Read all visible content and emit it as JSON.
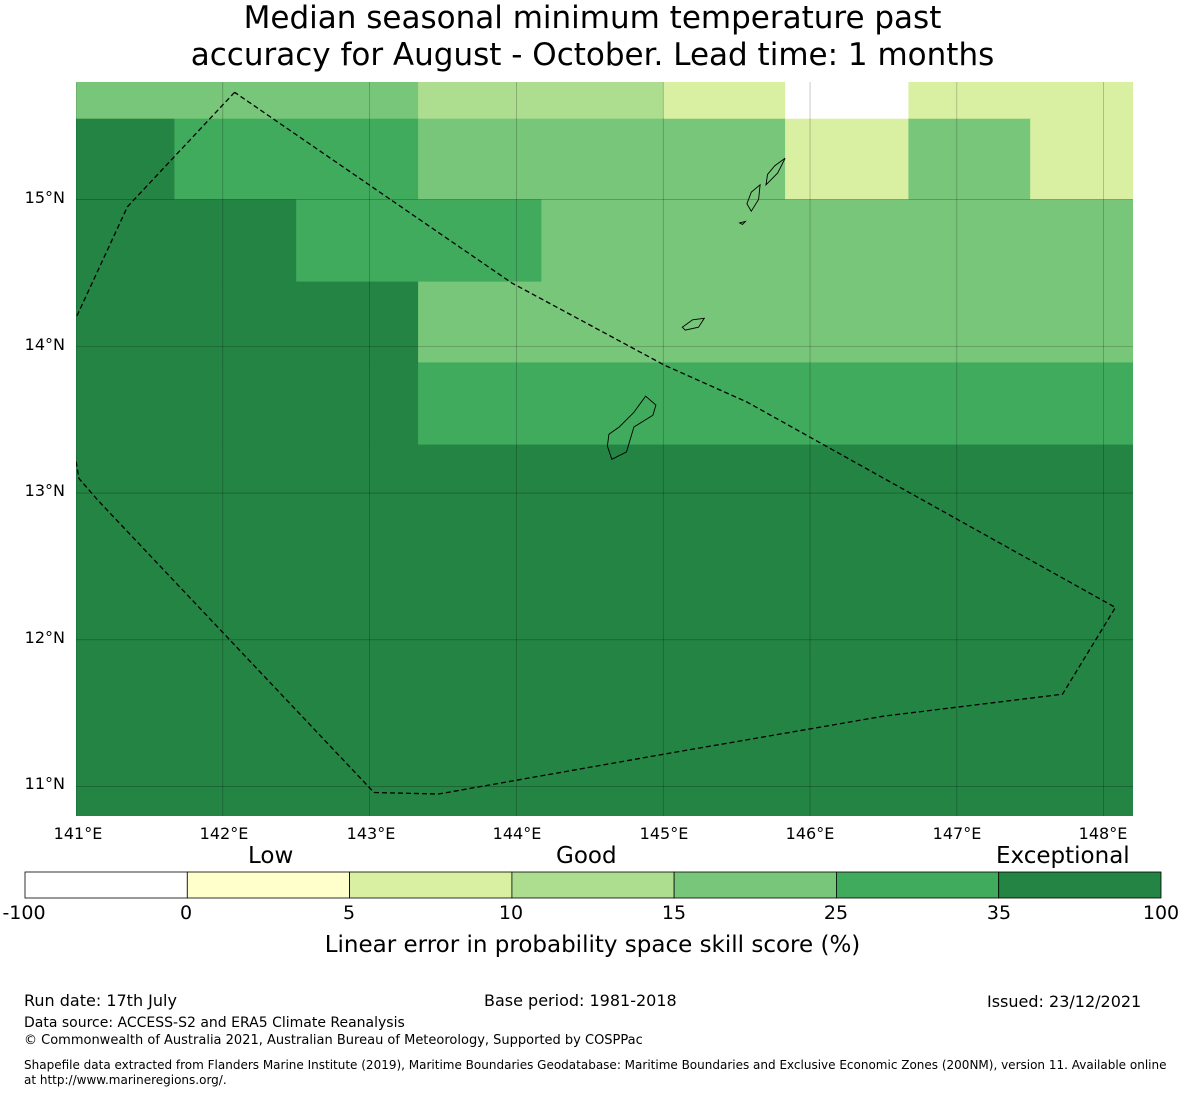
{
  "title": {
    "line1": "Median seasonal minimum temperature past",
    "line2": "accuracy for August - October. Lead time: 1 months"
  },
  "map": {
    "lon_range": [
      141.0,
      148.2
    ],
    "lat_range": [
      10.8,
      15.8
    ],
    "lon_ticks": [
      "141°E",
      "142°E",
      "143°E",
      "144°E",
      "145°E",
      "146°E",
      "147°E",
      "148°E"
    ],
    "lat_ticks": [
      "15°N",
      "14°N",
      "13°N",
      "12°N",
      "11°N"
    ],
    "category_colors": {
      "neg": "#ffffff",
      "0-5": "#ffffcc",
      "5-10": "#d9f0a3",
      "10-15": "#addd8e",
      "15-25": "#78c679",
      "25-35": "#41ab5d",
      "35-100": "#238443"
    },
    "cells": [
      {
        "lon": [
          141.0,
          143.33
        ],
        "lat": [
          15.55,
          15.8
        ],
        "cat": "15-25"
      },
      {
        "lon": [
          143.33,
          145.0
        ],
        "lat": [
          15.55,
          15.8
        ],
        "cat": "10-15"
      },
      {
        "lon": [
          145.0,
          145.83
        ],
        "lat": [
          15.55,
          15.8
        ],
        "cat": "5-10"
      },
      {
        "lon": [
          145.83,
          146.67
        ],
        "lat": [
          15.55,
          15.8
        ],
        "cat": "neg"
      },
      {
        "lon": [
          146.67,
          148.2
        ],
        "lat": [
          15.55,
          15.8
        ],
        "cat": "5-10"
      },
      {
        "lon": [
          141.0,
          141.67
        ],
        "lat": [
          15.0,
          15.55
        ],
        "cat": "35-100"
      },
      {
        "lon": [
          141.67,
          143.33
        ],
        "lat": [
          15.0,
          15.55
        ],
        "cat": "25-35"
      },
      {
        "lon": [
          143.33,
          145.83
        ],
        "lat": [
          15.0,
          15.55
        ],
        "cat": "15-25"
      },
      {
        "lon": [
          145.83,
          146.67
        ],
        "lat": [
          15.0,
          15.55
        ],
        "cat": "5-10"
      },
      {
        "lon": [
          146.67,
          147.5
        ],
        "lat": [
          15.0,
          15.55
        ],
        "cat": "15-25"
      },
      {
        "lon": [
          147.5,
          148.2
        ],
        "lat": [
          15.0,
          15.55
        ],
        "cat": "5-10"
      },
      {
        "lon": [
          141.0,
          142.5
        ],
        "lat": [
          14.44,
          15.0
        ],
        "cat": "35-100"
      },
      {
        "lon": [
          142.5,
          144.17
        ],
        "lat": [
          14.44,
          15.0
        ],
        "cat": "25-35"
      },
      {
        "lon": [
          144.17,
          148.2
        ],
        "lat": [
          14.44,
          15.0
        ],
        "cat": "15-25"
      },
      {
        "lon": [
          141.0,
          143.33
        ],
        "lat": [
          13.89,
          14.44
        ],
        "cat": "35-100"
      },
      {
        "lon": [
          143.33,
          148.2
        ],
        "lat": [
          13.89,
          14.44
        ],
        "cat": "15-25"
      },
      {
        "lon": [
          141.0,
          143.33
        ],
        "lat": [
          13.33,
          13.89
        ],
        "cat": "35-100"
      },
      {
        "lon": [
          143.33,
          148.2
        ],
        "lat": [
          13.33,
          13.89
        ],
        "cat": "25-35"
      },
      {
        "lon": [
          141.0,
          148.2
        ],
        "lat": [
          10.8,
          13.33
        ],
        "cat": "35-100"
      }
    ],
    "eez_boundary": [
      [
        142.08,
        15.73
      ],
      [
        141.35,
        14.95
      ],
      [
        140.98,
        14.15
      ],
      [
        140.97,
        13.4
      ],
      [
        141.02,
        13.1
      ],
      [
        141.15,
        12.95
      ],
      [
        143.03,
        10.96
      ],
      [
        143.47,
        10.95
      ],
      [
        145.0,
        11.22
      ],
      [
        146.5,
        11.48
      ],
      [
        147.72,
        11.63
      ],
      [
        148.08,
        12.22
      ],
      [
        145.57,
        13.62
      ],
      [
        145.01,
        13.87
      ],
      [
        143.97,
        14.43
      ],
      [
        142.08,
        15.73
      ]
    ],
    "islands": [
      [
        [
          144.65,
          13.23
        ],
        [
          144.75,
          13.28
        ],
        [
          144.8,
          13.45
        ],
        [
          144.93,
          13.53
        ],
        [
          144.95,
          13.6
        ],
        [
          144.88,
          13.66
        ],
        [
          144.8,
          13.55
        ],
        [
          144.7,
          13.45
        ],
        [
          144.63,
          13.4
        ],
        [
          144.62,
          13.32
        ]
      ],
      [
        [
          145.13,
          14.13
        ],
        [
          145.2,
          14.18
        ],
        [
          145.28,
          14.19
        ],
        [
          145.24,
          14.13
        ],
        [
          145.15,
          14.11
        ]
      ],
      [
        [
          145.6,
          14.92
        ],
        [
          145.65,
          15.0
        ],
        [
          145.66,
          15.1
        ],
        [
          145.6,
          15.05
        ],
        [
          145.57,
          14.97
        ]
      ],
      [
        [
          145.7,
          15.1
        ],
        [
          145.78,
          15.18
        ],
        [
          145.83,
          15.28
        ],
        [
          145.76,
          15.23
        ],
        [
          145.71,
          15.17
        ]
      ],
      [
        [
          145.52,
          14.84
        ],
        [
          145.56,
          14.85
        ],
        [
          145.54,
          14.83
        ]
      ]
    ]
  },
  "colorbar": {
    "boundaries": [
      "-100",
      "0",
      "5",
      "10",
      "15",
      "25",
      "35",
      "100"
    ],
    "colors": [
      "#ffffff",
      "#ffffcc",
      "#d9f0a3",
      "#addd8e",
      "#78c679",
      "#41ab5d",
      "#238443"
    ],
    "category_labels": {
      "low": "Low",
      "good": "Good",
      "exceptional": "Exceptional"
    },
    "title": "Linear error in probability space skill score (%)"
  },
  "footer": {
    "run_date": "Run date: 17th July",
    "base_period": "Base period: 1981-2018",
    "issued": "Issued: 23/12/2021",
    "data_source": "Data source: ACCESS-S2 and ERA5 Climate Reanalysis",
    "copyright": "© Commonwealth of Australia 2021, Australian Bureau of Meteorology, Supported by COSPPac",
    "shapefile_line1": "Shapefile data extracted from Flanders Marine Institute (2019), Maritime Boundaries Geodatabase: Maritime Boundaries and Exclusive Economic Zones (200NM), version 11. Available online",
    "shapefile_line2": "at http://www.marineregions.org/."
  }
}
